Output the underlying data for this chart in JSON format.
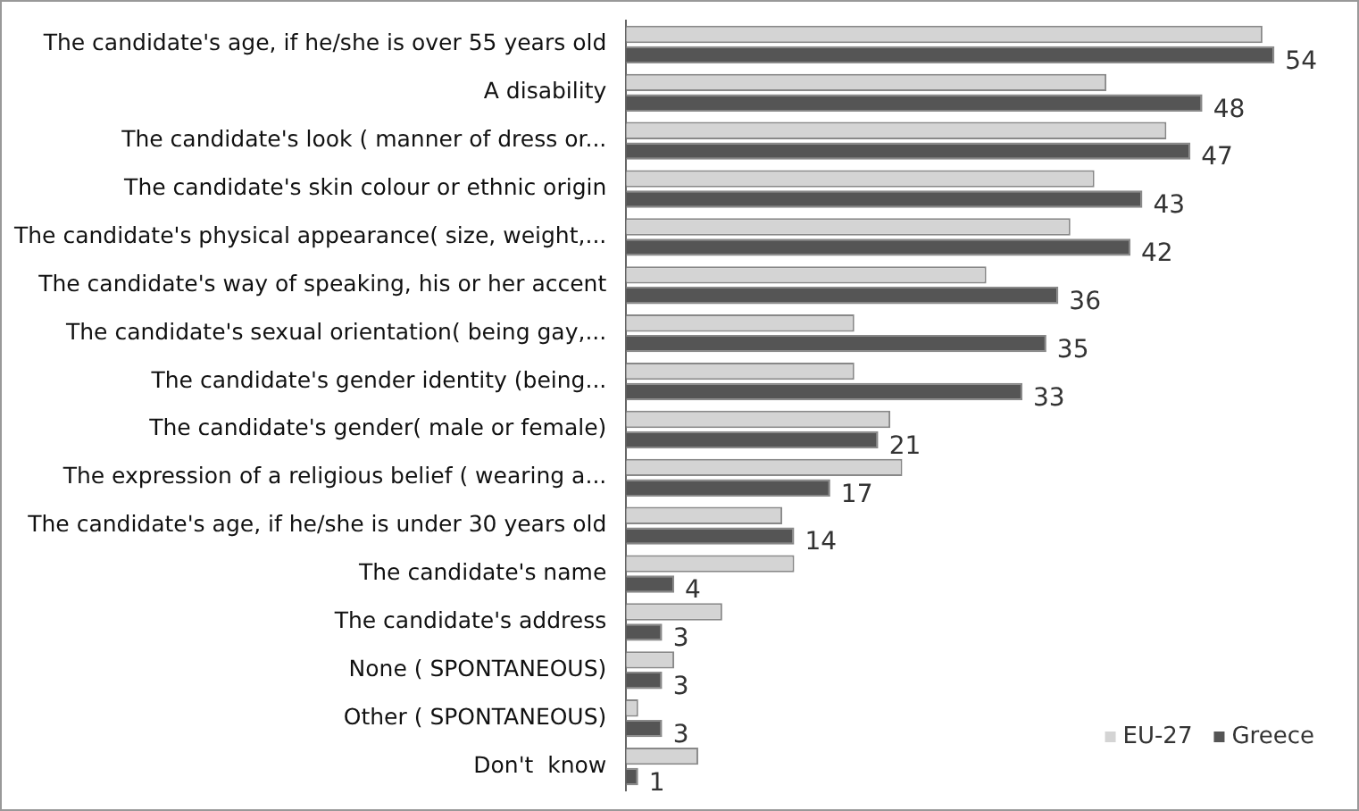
{
  "chart_data": {
    "type": "bar",
    "orientation": "horizontal",
    "categories": [
      "The candidate's age, if he/she is over 55 years old",
      "A disability",
      "The candidate's look ( manner of dress or...",
      "The candidate's skin colour or ethnic origin",
      "The candidate's physical appearance( size, weight,...",
      "The candidate's way of speaking, his or her accent",
      "The candidate's sexual orientation( being gay,...",
      "The candidate's gender identity (being...",
      "The candidate's gender( male or female)",
      "The expression of a religious belief ( wearing a...",
      "The candidate's age, if he/she is under 30 years old",
      "The candidate's name",
      "The candidate's address",
      "None ( SPONTANEOUS)",
      "Other ( SPONTANEOUS)",
      "Don't  know"
    ],
    "series": [
      {
        "name": "EU-27",
        "color": "#d4d4d4",
        "values": [
          53,
          40,
          45,
          39,
          37,
          30,
          19,
          19,
          22,
          23,
          13,
          14,
          8,
          4,
          1,
          6
        ]
      },
      {
        "name": "Greece",
        "color": "#555555",
        "values": [
          54,
          48,
          47,
          43,
          42,
          36,
          35,
          33,
          21,
          17,
          14,
          4,
          3,
          3,
          3,
          1
        ],
        "value_labels": [
          "54",
          "48",
          "47",
          "43",
          "42",
          "36",
          "35",
          "33",
          "21",
          "17",
          "14",
          "4",
          "3",
          "3",
          "3",
          "1"
        ]
      }
    ],
    "tick_labels": "y",
    "legend": "bottom right"
  }
}
